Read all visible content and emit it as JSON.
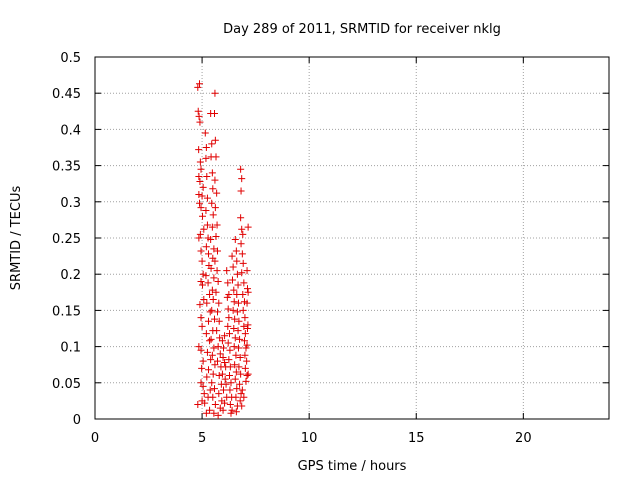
{
  "chart_data": {
    "type": "scatter",
    "title": "Day 289 of 2011, SRMTID for receiver nklg",
    "xlabel": "GPS time / hours",
    "ylabel": "SRMTID / TECUs",
    "xlim": [
      0,
      24
    ],
    "ylim": [
      0,
      0.5
    ],
    "xticks": [
      0,
      5,
      10,
      15,
      20
    ],
    "yticks": [
      0,
      0.05,
      0.1,
      0.15,
      0.2,
      0.25,
      0.3,
      0.35,
      0.4,
      0.45,
      0.5
    ],
    "xtick_labels": [
      "0",
      "5",
      "10",
      "15",
      "20"
    ],
    "ytick_labels": [
      "0",
      "0.05",
      "0.1",
      "0.15",
      "0.2",
      "0.25",
      "0.3",
      "0.35",
      "0.4",
      "0.45",
      "0.5"
    ],
    "grid": true,
    "marker": "+",
    "color": "#e00000",
    "series": [
      {
        "points": [
          [
            4.8,
            0.458
          ],
          [
            4.88,
            0.463
          ],
          [
            4.82,
            0.425
          ],
          [
            4.86,
            0.418
          ],
          [
            4.9,
            0.41
          ],
          [
            4.84,
            0.372
          ],
          [
            4.92,
            0.355
          ],
          [
            4.95,
            0.345
          ],
          [
            4.85,
            0.335
          ],
          [
            4.9,
            0.328
          ],
          [
            4.85,
            0.31
          ],
          [
            5.0,
            0.308
          ],
          [
            5.05,
            0.32
          ],
          [
            4.88,
            0.298
          ],
          [
            4.95,
            0.292
          ],
          [
            5.02,
            0.28
          ],
          [
            5.08,
            0.262
          ],
          [
            4.85,
            0.25
          ],
          [
            4.92,
            0.255
          ],
          [
            4.95,
            0.232
          ],
          [
            5.0,
            0.218
          ],
          [
            5.05,
            0.2
          ],
          [
            4.95,
            0.19
          ],
          [
            5.02,
            0.185
          ],
          [
            5.08,
            0.165
          ],
          [
            4.9,
            0.158
          ],
          [
            4.95,
            0.14
          ],
          [
            5.0,
            0.128
          ],
          [
            4.85,
            0.1
          ],
          [
            4.95,
            0.095
          ],
          [
            5.05,
            0.08
          ],
          [
            4.98,
            0.07
          ],
          [
            4.95,
            0.05
          ],
          [
            5.05,
            0.045
          ],
          [
            5.1,
            0.035
          ],
          [
            4.8,
            0.02
          ],
          [
            5.0,
            0.025
          ],
          [
            5.12,
            0.022
          ],
          [
            5.15,
            0.395
          ],
          [
            5.2,
            0.375
          ],
          [
            5.18,
            0.36
          ],
          [
            5.22,
            0.335
          ],
          [
            5.25,
            0.305
          ],
          [
            5.18,
            0.288
          ],
          [
            5.25,
            0.268
          ],
          [
            5.28,
            0.25
          ],
          [
            5.2,
            0.238
          ],
          [
            5.3,
            0.228
          ],
          [
            5.32,
            0.212
          ],
          [
            5.18,
            0.198
          ],
          [
            5.28,
            0.188
          ],
          [
            5.35,
            0.172
          ],
          [
            5.22,
            0.16
          ],
          [
            5.38,
            0.148
          ],
          [
            5.3,
            0.135
          ],
          [
            5.2,
            0.118
          ],
          [
            5.35,
            0.108
          ],
          [
            5.25,
            0.092
          ],
          [
            5.4,
            0.082
          ],
          [
            5.3,
            0.068
          ],
          [
            5.22,
            0.058
          ],
          [
            5.38,
            0.04
          ],
          [
            5.28,
            0.03
          ],
          [
            5.35,
            0.012
          ],
          [
            5.2,
            0.008
          ],
          [
            5.4,
            0.422
          ],
          [
            5.45,
            0.38
          ],
          [
            5.42,
            0.362
          ],
          [
            5.48,
            0.34
          ],
          [
            5.5,
            0.318
          ],
          [
            5.45,
            0.298
          ],
          [
            5.52,
            0.282
          ],
          [
            5.48,
            0.265
          ],
          [
            5.4,
            0.248
          ],
          [
            5.55,
            0.235
          ],
          [
            5.5,
            0.222
          ],
          [
            5.42,
            0.208
          ],
          [
            5.55,
            0.195
          ],
          [
            5.48,
            0.178
          ],
          [
            5.52,
            0.165
          ],
          [
            5.45,
            0.15
          ],
          [
            5.58,
            0.138
          ],
          [
            5.5,
            0.122
          ],
          [
            5.42,
            0.11
          ],
          [
            5.55,
            0.098
          ],
          [
            5.48,
            0.088
          ],
          [
            5.6,
            0.075
          ],
          [
            5.52,
            0.062
          ],
          [
            5.45,
            0.05
          ],
          [
            5.58,
            0.042
          ],
          [
            5.5,
            0.03
          ],
          [
            5.62,
            0.02
          ],
          [
            5.55,
            0.008
          ],
          [
            5.6,
            0.45
          ],
          [
            5.58,
            0.422
          ],
          [
            5.62,
            0.385
          ],
          [
            5.65,
            0.362
          ],
          [
            5.6,
            0.33
          ],
          [
            5.68,
            0.312
          ],
          [
            5.62,
            0.292
          ],
          [
            5.7,
            0.268
          ],
          [
            5.65,
            0.252
          ],
          [
            5.72,
            0.232
          ],
          [
            5.6,
            0.218
          ],
          [
            5.7,
            0.205
          ],
          [
            5.75,
            0.19
          ],
          [
            5.65,
            0.175
          ],
          [
            5.78,
            0.16
          ],
          [
            5.72,
            0.148
          ],
          [
            5.8,
            0.135
          ],
          [
            5.68,
            0.122
          ],
          [
            5.82,
            0.112
          ],
          [
            5.75,
            0.1
          ],
          [
            5.85,
            0.09
          ],
          [
            5.72,
            0.08
          ],
          [
            5.88,
            0.072
          ],
          [
            5.8,
            0.06
          ],
          [
            5.9,
            0.048
          ],
          [
            5.78,
            0.035
          ],
          [
            5.92,
            0.025
          ],
          [
            5.85,
            0.015
          ],
          [
            5.75,
            0.005
          ],
          [
            5.95,
            0.108
          ],
          [
            6.0,
            0.098
          ],
          [
            6.05,
            0.115
          ],
          [
            5.98,
            0.085
          ],
          [
            6.05,
            0.078
          ],
          [
            6.1,
            0.072
          ],
          [
            5.95,
            0.062
          ],
          [
            6.08,
            0.055
          ],
          [
            6.12,
            0.048
          ],
          [
            6.0,
            0.04
          ],
          [
            6.15,
            0.03
          ],
          [
            6.05,
            0.022
          ],
          [
            5.98,
            0.012
          ],
          [
            6.15,
            0.205
          ],
          [
            6.2,
            0.188
          ],
          [
            6.18,
            0.168
          ],
          [
            6.22,
            0.152
          ],
          [
            6.25,
            0.14
          ],
          [
            6.2,
            0.128
          ],
          [
            6.28,
            0.118
          ],
          [
            6.22,
            0.105
          ],
          [
            6.3,
            0.095
          ],
          [
            6.25,
            0.082
          ],
          [
            6.32,
            0.072
          ],
          [
            6.28,
            0.06
          ],
          [
            6.35,
            0.05
          ],
          [
            6.3,
            0.04
          ],
          [
            6.38,
            0.03
          ],
          [
            6.32,
            0.02
          ],
          [
            6.4,
            0.012
          ],
          [
            6.35,
            0.008
          ],
          [
            6.25,
            0.172
          ],
          [
            6.4,
            0.225
          ],
          [
            6.45,
            0.21
          ],
          [
            6.42,
            0.192
          ],
          [
            6.48,
            0.178
          ],
          [
            6.5,
            0.162
          ],
          [
            6.45,
            0.15
          ],
          [
            6.52,
            0.138
          ],
          [
            6.48,
            0.125
          ],
          [
            6.55,
            0.112
          ],
          [
            6.5,
            0.1
          ],
          [
            6.58,
            0.088
          ],
          [
            6.52,
            0.075
          ],
          [
            6.6,
            0.065
          ],
          [
            6.55,
            0.055
          ],
          [
            6.62,
            0.042
          ],
          [
            6.58,
            0.03
          ],
          [
            6.65,
            0.018
          ],
          [
            6.6,
            0.01
          ],
          [
            6.55,
            0.248
          ],
          [
            6.6,
            0.232
          ],
          [
            6.62,
            0.218
          ],
          [
            6.65,
            0.2
          ],
          [
            6.68,
            0.185
          ],
          [
            6.62,
            0.172
          ],
          [
            6.7,
            0.16
          ],
          [
            6.65,
            0.148
          ],
          [
            6.72,
            0.135
          ],
          [
            6.68,
            0.122
          ],
          [
            6.75,
            0.11
          ],
          [
            6.7,
            0.098
          ],
          [
            6.78,
            0.085
          ],
          [
            6.72,
            0.072
          ],
          [
            6.8,
            0.062
          ],
          [
            6.75,
            0.048
          ],
          [
            6.82,
            0.035
          ],
          [
            6.78,
            0.025
          ],
          [
            6.8,
            0.345
          ],
          [
            6.85,
            0.332
          ],
          [
            6.82,
            0.315
          ],
          [
            6.8,
            0.278
          ],
          [
            6.85,
            0.262
          ],
          [
            6.9,
            0.255
          ],
          [
            6.82,
            0.242
          ],
          [
            6.88,
            0.228
          ],
          [
            6.92,
            0.215
          ],
          [
            6.85,
            0.202
          ],
          [
            6.95,
            0.188
          ],
          [
            6.9,
            0.172
          ],
          [
            6.98,
            0.162
          ],
          [
            6.92,
            0.15
          ],
          [
            7.0,
            0.14
          ],
          [
            6.95,
            0.128
          ],
          [
            7.02,
            0.118
          ],
          [
            6.98,
            0.108
          ],
          [
            7.05,
            0.098
          ],
          [
            7.0,
            0.088
          ],
          [
            7.08,
            0.08
          ],
          [
            7.02,
            0.07
          ],
          [
            7.1,
            0.06
          ],
          [
            7.05,
            0.052
          ],
          [
            6.88,
            0.04
          ],
          [
            6.95,
            0.03
          ],
          [
            6.85,
            0.018
          ],
          [
            7.15,
            0.265
          ],
          [
            7.1,
            0.205
          ],
          [
            7.12,
            0.18
          ],
          [
            7.15,
            0.175
          ],
          [
            7.1,
            0.16
          ],
          [
            7.14,
            0.13
          ],
          [
            7.12,
            0.125
          ],
          [
            7.1,
            0.102
          ],
          [
            7.15,
            0.062
          ]
        ]
      }
    ]
  }
}
